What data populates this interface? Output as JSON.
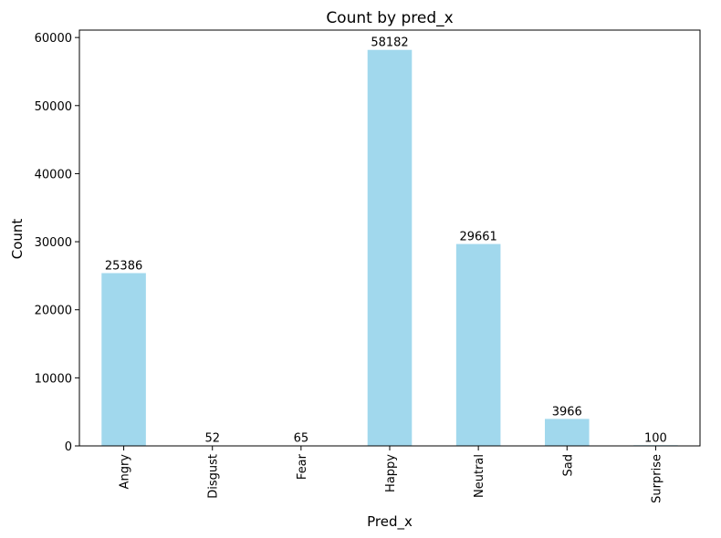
{
  "chart_data": {
    "type": "bar",
    "title": "Count by pred_x",
    "xlabel": "Pred_x",
    "ylabel": "Count",
    "categories": [
      "Angry",
      "Disgust",
      "Fear",
      "Happy",
      "Neutral",
      "Sad",
      "Surprise"
    ],
    "values": [
      25386,
      52,
      65,
      58182,
      29661,
      3966,
      100
    ],
    "data_labels": [
      "25386",
      "52",
      "65",
      "58182",
      "29661",
      "3966",
      "100"
    ],
    "ylim": [
      0,
      61091
    ],
    "yticks": [
      0,
      10000,
      20000,
      30000,
      40000,
      50000,
      60000
    ],
    "ytick_labels": [
      "0",
      "10000",
      "20000",
      "30000",
      "40000",
      "50000",
      "60000"
    ],
    "grid": false,
    "bar_color": "#a1d8ed"
  }
}
